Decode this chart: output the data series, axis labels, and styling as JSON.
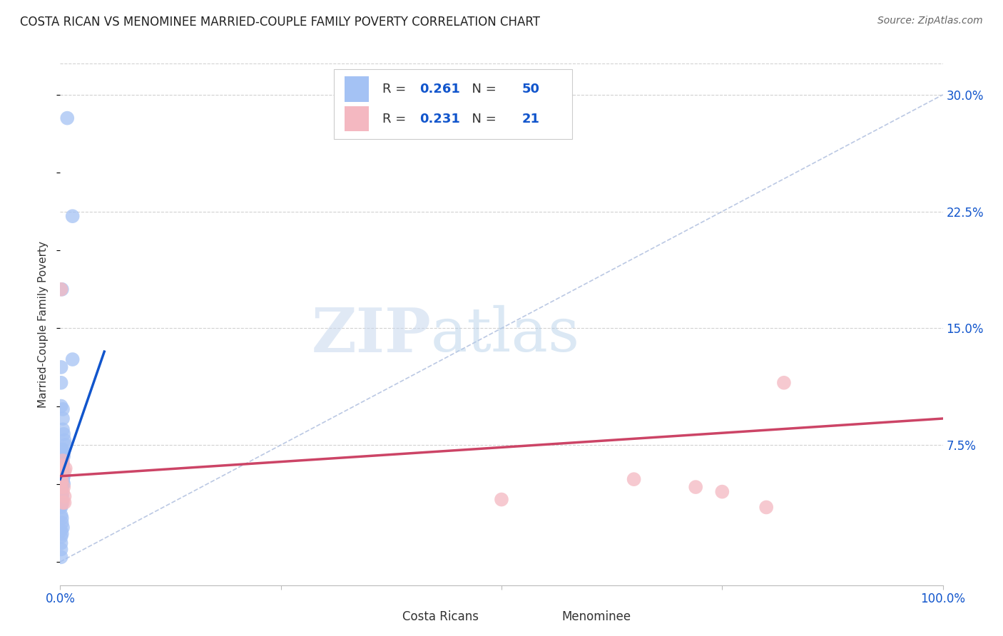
{
  "title": "COSTA RICAN VS MENOMINEE MARRIED-COUPLE FAMILY POVERTY CORRELATION CHART",
  "source": "Source: ZipAtlas.com",
  "ylabel": "Married-Couple Family Poverty",
  "xlim": [
    0,
    1.0
  ],
  "ylim": [
    -0.015,
    0.32
  ],
  "ytick_positions": [
    0.075,
    0.15,
    0.225,
    0.3
  ],
  "ytick_labels": [
    "7.5%",
    "15.0%",
    "22.5%",
    "30.0%"
  ],
  "grid_color": "#cccccc",
  "background_color": "#ffffff",
  "blue_color": "#a4c2f4",
  "pink_color": "#f4b8c1",
  "blue_line_color": "#1155cc",
  "pink_line_color": "#cc4466",
  "diag_color": "#aabbdd",
  "blue_scatter": {
    "x": [
      0.008,
      0.014,
      0.002,
      0.014,
      0.001,
      0.001,
      0.001,
      0.003,
      0.003,
      0.003,
      0.004,
      0.005,
      0.006,
      0.003,
      0.002,
      0.001,
      0.004,
      0.002,
      0.003,
      0.001,
      0.002,
      0.002,
      0.003,
      0.001,
      0.003,
      0.004,
      0.003,
      0.002,
      0.003,
      0.004,
      0.001,
      0.001,
      0.002,
      0.001,
      0.002,
      0.002,
      0.001,
      0.002,
      0.001,
      0.001,
      0.001,
      0.002,
      0.002,
      0.003,
      0.001,
      0.002,
      0.001,
      0.001,
      0.001,
      0.001
    ],
    "y": [
      0.285,
      0.222,
      0.175,
      0.13,
      0.125,
      0.115,
      0.1,
      0.098,
      0.092,
      0.085,
      0.082,
      0.078,
      0.075,
      0.072,
      0.072,
      0.068,
      0.068,
      0.065,
      0.063,
      0.063,
      0.062,
      0.06,
      0.058,
      0.058,
      0.055,
      0.055,
      0.053,
      0.052,
      0.052,
      0.05,
      0.05,
      0.048,
      0.048,
      0.045,
      0.043,
      0.042,
      0.04,
      0.038,
      0.036,
      0.035,
      0.03,
      0.028,
      0.025,
      0.022,
      0.02,
      0.018,
      0.016,
      0.012,
      0.008,
      0.003
    ]
  },
  "pink_scatter": {
    "x": [
      0.001,
      0.001,
      0.001,
      0.002,
      0.003,
      0.003,
      0.003,
      0.003,
      0.004,
      0.005,
      0.005,
      0.005,
      0.006,
      0.001,
      0.002,
      0.5,
      0.65,
      0.72,
      0.75,
      0.8,
      0.82
    ],
    "y": [
      0.175,
      0.058,
      0.052,
      0.058,
      0.065,
      0.062,
      0.045,
      0.038,
      0.048,
      0.058,
      0.042,
      0.038,
      0.06,
      0.048,
      0.052,
      0.04,
      0.053,
      0.048,
      0.045,
      0.035,
      0.115
    ]
  },
  "blue_line": {
    "x0": 0.0,
    "y0": 0.053,
    "x1": 0.05,
    "y1": 0.135
  },
  "pink_line": {
    "x0": 0.0,
    "y0": 0.055,
    "x1": 1.0,
    "y1": 0.092
  },
  "diag_line": {
    "x0": 0.0,
    "y0": 0.0,
    "x1": 1.0,
    "y1": 0.3
  },
  "blue_R": 0.261,
  "blue_N": 50,
  "pink_R": 0.231,
  "pink_N": 21,
  "watermark_zip": "ZIP",
  "watermark_atlas": "atlas",
  "title_fontsize": 12,
  "tick_fontsize": 12,
  "ylabel_fontsize": 11
}
